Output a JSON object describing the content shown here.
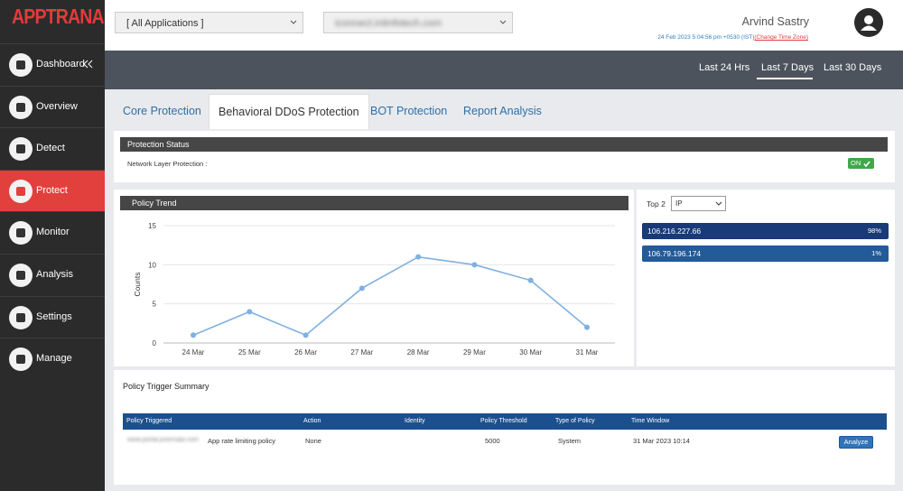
{
  "header": {
    "logo": "APPTRANA",
    "app_select": "[ All Applications ]",
    "site_select": "iconnect.intinfotech.com",
    "user": "Arvind Sastry",
    "datetime": "24 Feb 2023 5:04:56 pm +0530 (IST)",
    "change_tz": "(Change Time Zone)"
  },
  "sidebar": [
    "Dashboard",
    "Overview",
    "Detect",
    "Protect",
    "Monitor",
    "Analysis",
    "Settings",
    "Manage"
  ],
  "time_filters": [
    "Last 24 Hrs",
    "Last 7 Days",
    "Last 30 Days"
  ],
  "tabs": [
    "Core Protection",
    "Behavioral DDoS Protection",
    "BOT Protection",
    "Report Analysis"
  ],
  "protection_status": {
    "title": "Protection Status",
    "label": "Network Layer Protection :",
    "state": "ON"
  },
  "chart_data": {
    "type": "line",
    "title": "Policy Trend",
    "ylabel": "Counts",
    "categories": [
      "24 Mar",
      "25 Mar",
      "26 Mar",
      "27 Mar",
      "28 Mar",
      "29 Mar",
      "30 Mar",
      "31 Mar"
    ],
    "values": [
      1,
      4,
      1,
      7,
      11,
      10,
      8,
      2
    ],
    "color": "#7fb0e0",
    "ylim": [
      0,
      15
    ],
    "yticks": [
      0,
      5,
      10,
      15
    ],
    "grid": true
  },
  "top_list": {
    "label": "Top 2",
    "select": "IP",
    "items": [
      {
        "ip": "106.216.227.66",
        "share": "98%"
      },
      {
        "ip": "106.79.196.174",
        "share": "1%"
      }
    ]
  },
  "policy_summary": {
    "title": "Policy Trigger Summary",
    "columns": [
      "Policy Triggered",
      "Action",
      "Identity",
      "Policy Threshold",
      "Type of Policy",
      "Time Window"
    ],
    "rows": [
      {
        "host": "www.portal.poornata.com",
        "policy": "App rate limiting policy",
        "action": "None",
        "threshold": "5000",
        "type": "System",
        "window": "31 Mar 2023 10:14",
        "button": "Analyze"
      }
    ]
  }
}
